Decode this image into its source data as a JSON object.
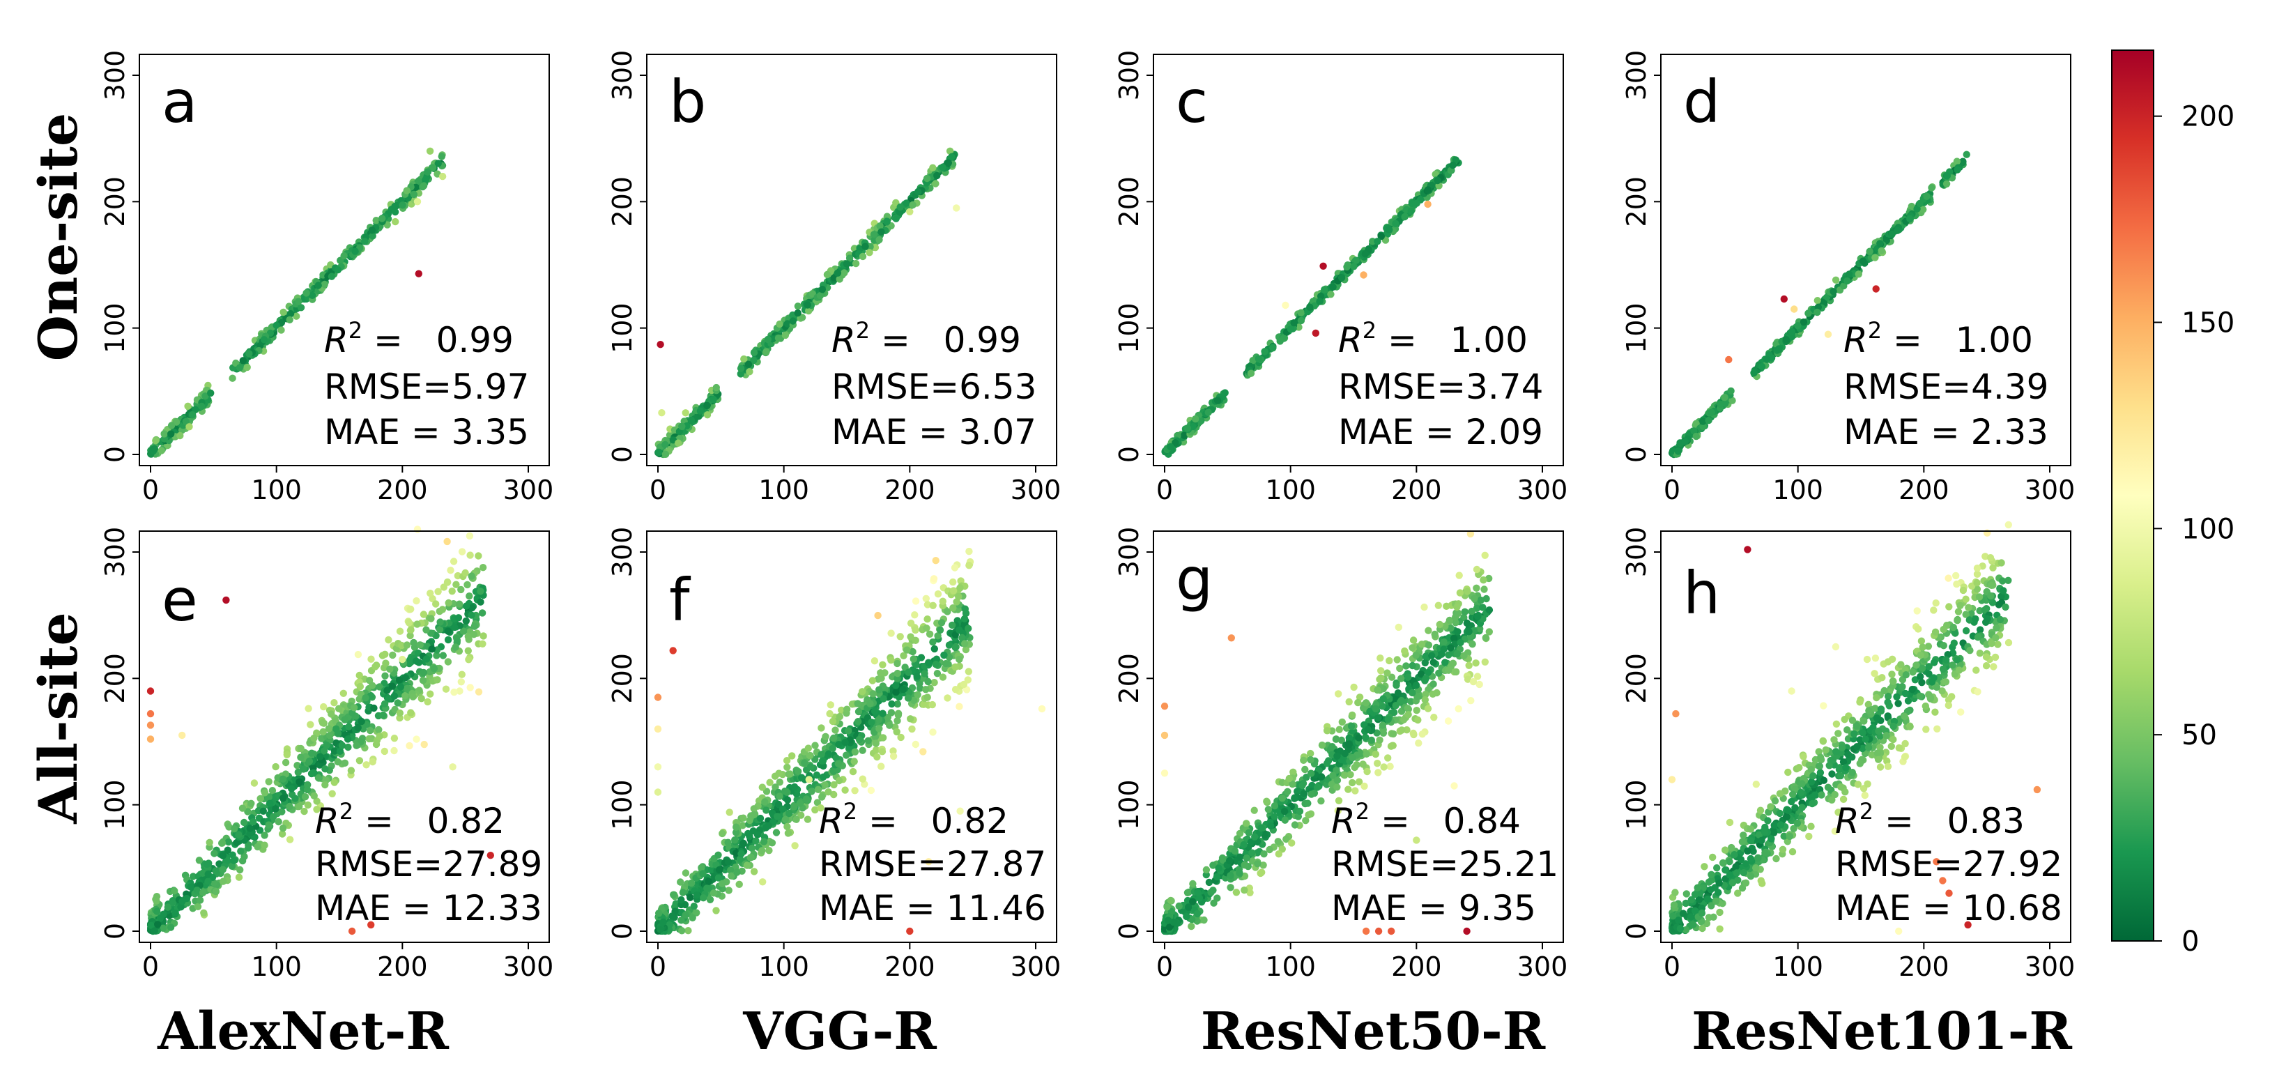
{
  "row_labels": [
    "One-site",
    "All-site"
  ],
  "column_labels": [
    "AlexNet-R",
    "VGG-R",
    "ResNet50-R",
    "ResNet101-R"
  ],
  "colorbar": {
    "min": 0,
    "max": 216,
    "ticks": [
      "0",
      "50",
      "100",
      "150",
      "200"
    ],
    "colormap": [
      "#006837",
      "#1a9850",
      "#66bd63",
      "#a6d96a",
      "#d9ef8b",
      "#ffffbf",
      "#fee08b",
      "#fdae61",
      "#f46d43",
      "#d73027",
      "#a50026"
    ]
  },
  "chart_data": [
    {
      "panel": "a",
      "type": "scatter",
      "row": "One-site",
      "model": "AlexNet-R",
      "xlim": [
        0,
        300
      ],
      "ylim": [
        0,
        300
      ],
      "xticks": [
        "0",
        "100",
        "200",
        "300"
      ],
      "yticks": [
        "0",
        "100",
        "200",
        "300"
      ],
      "r2_label": "R",
      "r2_sup": "2",
      "r2_text": " =   0.99",
      "rmse_text": "RMSE=5.97",
      "mae_text": "MAE = 3.35",
      "r2": 0.99,
      "rmse": 5.97,
      "mae": 3.35,
      "max_x": 232,
      "n_points": 420,
      "noise": 3.5,
      "outliers": [
        [
          213,
          143,
          210
        ],
        [
          232,
          220,
          80
        ],
        [
          212,
          200,
          90
        ],
        [
          222,
          240,
          60
        ]
      ]
    },
    {
      "panel": "b",
      "type": "scatter",
      "row": "One-site",
      "model": "VGG-R",
      "xlim": [
        0,
        300
      ],
      "ylim": [
        0,
        300
      ],
      "xticks": [
        "0",
        "100",
        "200",
        "300"
      ],
      "yticks": [
        "0",
        "100",
        "200",
        "300"
      ],
      "r2_label": "R",
      "r2_sup": "2",
      "r2_text": " =   0.99",
      "rmse_text": "RMSE=6.53",
      "mae_text": "MAE = 3.07",
      "r2": 0.99,
      "rmse": 6.53,
      "mae": 3.07,
      "max_x": 236,
      "n_points": 420,
      "noise": 3.8,
      "outliers": [
        [
          2,
          87,
          210
        ],
        [
          237,
          195,
          100
        ],
        [
          200,
          192,
          80
        ],
        [
          3,
          33,
          85
        ]
      ]
    },
    {
      "panel": "c",
      "type": "scatter",
      "row": "One-site",
      "model": "ResNet50-R",
      "xlim": [
        0,
        300
      ],
      "ylim": [
        0,
        300
      ],
      "xticks": [
        "0",
        "100",
        "200",
        "300"
      ],
      "yticks": [
        "0",
        "100",
        "200",
        "300"
      ],
      "r2_label": "R",
      "r2_sup": "2",
      "r2_text": " =   1.00",
      "rmse_text": "RMSE=3.74",
      "mae_text": "MAE = 2.09",
      "r2": 1.0,
      "rmse": 3.74,
      "mae": 2.09,
      "max_x": 234,
      "n_points": 420,
      "noise": 2.2,
      "outliers": [
        [
          126,
          149,
          210
        ],
        [
          120,
          96,
          205
        ],
        [
          158,
          142,
          150
        ],
        [
          209,
          198,
          150
        ],
        [
          96,
          118,
          110
        ]
      ]
    },
    {
      "panel": "d",
      "type": "scatter",
      "row": "One-site",
      "model": "ResNet101-R",
      "xlim": [
        0,
        300
      ],
      "ylim": [
        0,
        300
      ],
      "xticks": [
        "0",
        "100",
        "200",
        "300"
      ],
      "yticks": [
        "0",
        "100",
        "200",
        "300"
      ],
      "r2_label": "R",
      "r2_sup": "2",
      "r2_text": " =   1.00",
      "rmse_text": "RMSE=4.39",
      "mae_text": "MAE = 2.33",
      "r2": 1.0,
      "rmse": 4.39,
      "mae": 2.33,
      "max_x": 234,
      "n_points": 420,
      "noise": 2.6,
      "outliers": [
        [
          89,
          123,
          210
        ],
        [
          162,
          131,
          200
        ],
        [
          45,
          75,
          170
        ],
        [
          97,
          115,
          130
        ],
        [
          124,
          95,
          120
        ]
      ]
    },
    {
      "panel": "e",
      "type": "scatter",
      "row": "All-site",
      "model": "AlexNet-R",
      "xlim": [
        0,
        300
      ],
      "ylim": [
        0,
        300
      ],
      "xticks": [
        "0",
        "100",
        "200",
        "300"
      ],
      "yticks": [
        "0",
        "100",
        "200",
        "300"
      ],
      "r2_label": "R",
      "r2_sup": "2",
      "r2_text": " =   0.82",
      "rmse_text": "RMSE=27.89",
      "mae_text": "MAE = 12.33",
      "r2": 0.82,
      "rmse": 27.89,
      "mae": 12.33,
      "max_x": 265,
      "n_points": 900,
      "noise": 15,
      "outliers": [
        [
          60,
          262,
          210
        ],
        [
          0,
          190,
          200
        ],
        [
          0,
          172,
          170
        ],
        [
          0,
          163,
          160
        ],
        [
          0,
          152,
          150
        ],
        [
          212,
          318,
          110
        ],
        [
          160,
          0,
          180
        ],
        [
          175,
          5,
          190
        ],
        [
          270,
          60,
          200
        ],
        [
          255,
          281,
          40
        ],
        [
          25,
          155,
          120
        ],
        [
          200,
          215,
          90
        ],
        [
          240,
          130,
          95
        ]
      ]
    },
    {
      "panel": "f",
      "type": "scatter",
      "row": "All-site",
      "model": "VGG-R",
      "xlim": [
        0,
        300
      ],
      "ylim": [
        0,
        300
      ],
      "xticks": [
        "0",
        "100",
        "200",
        "300"
      ],
      "yticks": [
        "0",
        "100",
        "200",
        "300"
      ],
      "r2_label": "R",
      "r2_sup": "2",
      "r2_text": " =   0.82",
      "rmse_text": "RMSE=27.87",
      "mae_text": "MAE = 11.46",
      "r2": 0.82,
      "rmse": 27.87,
      "mae": 11.46,
      "max_x": 248,
      "n_points": 900,
      "noise": 15,
      "outliers": [
        [
          12,
          222,
          190
        ],
        [
          0,
          185,
          160
        ],
        [
          0,
          160,
          120
        ],
        [
          0,
          130,
          100
        ],
        [
          0,
          110,
          90
        ],
        [
          200,
          0,
          190
        ],
        [
          305,
          176,
          110
        ],
        [
          120,
          120,
          90
        ],
        [
          215,
          55,
          120
        ],
        [
          240,
          95,
          100
        ]
      ]
    },
    {
      "panel": "g",
      "type": "scatter",
      "row": "All-site",
      "model": "ResNet50-R",
      "xlim": [
        0,
        300
      ],
      "ylim": [
        0,
        300
      ],
      "xticks": [
        "0",
        "100",
        "200",
        "300"
      ],
      "yticks": [
        "0",
        "100",
        "200",
        "300"
      ],
      "r2_label": "R",
      "r2_sup": "2",
      "r2_text": " =   0.84",
      "rmse_text": "RMSE=25.21",
      "mae_text": "MAE = 9.35",
      "r2": 0.84,
      "rmse": 25.21,
      "mae": 9.35,
      "max_x": 258,
      "n_points": 900,
      "noise": 14,
      "outliers": [
        [
          53,
          232,
          160
        ],
        [
          0,
          178,
          160
        ],
        [
          0,
          155,
          140
        ],
        [
          0,
          125,
          110
        ],
        [
          240,
          0,
          210
        ],
        [
          170,
          0,
          180
        ],
        [
          180,
          0,
          180
        ],
        [
          160,
          0,
          170
        ],
        [
          230,
          115,
          110
        ],
        [
          200,
          72,
          80
        ]
      ]
    },
    {
      "panel": "h",
      "type": "scatter",
      "row": "All-site",
      "model": "ResNet101-R",
      "xlim": [
        0,
        300
      ],
      "ylim": [
        0,
        300
      ],
      "xticks": [
        "0",
        "100",
        "200",
        "300"
      ],
      "yticks": [
        "0",
        "100",
        "200",
        "300"
      ],
      "r2_label": "R",
      "r2_sup": "2",
      "r2_text": " =   0.83",
      "rmse_text": "RMSE=27.92",
      "mae_text": "MAE = 10.68",
      "r2": 0.83,
      "rmse": 27.92,
      "mae": 10.68,
      "max_x": 268,
      "n_points": 900,
      "noise": 15,
      "outliers": [
        [
          60,
          302,
          210
        ],
        [
          3,
          172,
          160
        ],
        [
          0,
          120,
          120
        ],
        [
          210,
          55,
          170
        ],
        [
          215,
          40,
          170
        ],
        [
          220,
          30,
          180
        ],
        [
          235,
          5,
          200
        ],
        [
          290,
          112,
          160
        ],
        [
          130,
          225,
          100
        ],
        [
          95,
          190,
          100
        ],
        [
          155,
          215,
          90
        ],
        [
          180,
          0,
          110
        ]
      ]
    }
  ]
}
